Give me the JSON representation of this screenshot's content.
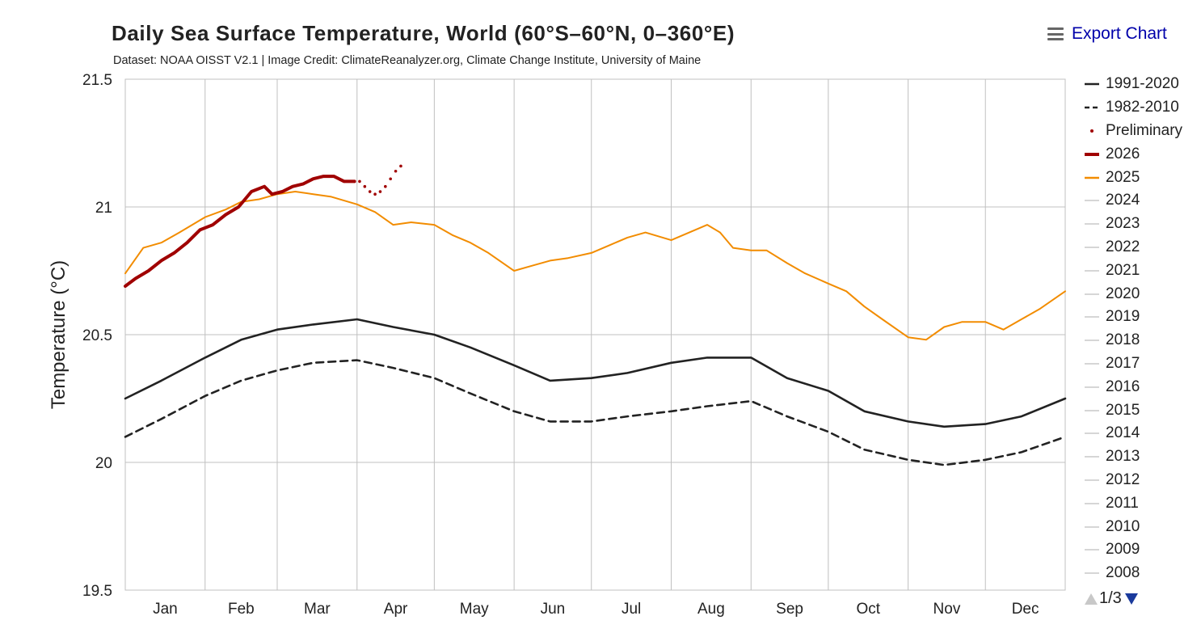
{
  "header": {
    "title": "Daily Sea Surface Temperature, World (60°S–60°N, 0–360°E)",
    "subtitle": "Dataset: NOAA OISST V2.1 | Image Credit: ClimateReanalyzer.org, Climate Change Institute, University of Maine",
    "export_label": "Export Chart",
    "export_icon": "menu-icon"
  },
  "legend": {
    "items": [
      {
        "label": "1991-2020",
        "style": "solid",
        "color": "#222222"
      },
      {
        "label": "1982-2010",
        "style": "dashed",
        "color": "#222222"
      },
      {
        "label": "Preliminary",
        "style": "dot",
        "color": "#a00000"
      },
      {
        "label": "2026",
        "style": "bold",
        "color": "#a00000"
      },
      {
        "label": "2025",
        "style": "solid",
        "color": "#f28c00"
      },
      {
        "label": "2024",
        "style": "thin",
        "color": "#c8c8c8"
      },
      {
        "label": "2023",
        "style": "thin",
        "color": "#c8c8c8"
      },
      {
        "label": "2022",
        "style": "thin",
        "color": "#c8c8c8"
      },
      {
        "label": "2021",
        "style": "thin",
        "color": "#c8c8c8"
      },
      {
        "label": "2020",
        "style": "thin",
        "color": "#c8c8c8"
      },
      {
        "label": "2019",
        "style": "thin",
        "color": "#c8c8c8"
      },
      {
        "label": "2018",
        "style": "thin",
        "color": "#c8c8c8"
      },
      {
        "label": "2017",
        "style": "thin",
        "color": "#c8c8c8"
      },
      {
        "label": "2016",
        "style": "thin",
        "color": "#c8c8c8"
      },
      {
        "label": "2015",
        "style": "thin",
        "color": "#c8c8c8"
      },
      {
        "label": "2014",
        "style": "thin",
        "color": "#c8c8c8"
      },
      {
        "label": "2013",
        "style": "thin",
        "color": "#c8c8c8"
      },
      {
        "label": "2012",
        "style": "thin",
        "color": "#c8c8c8"
      },
      {
        "label": "2011",
        "style": "thin",
        "color": "#c8c8c8"
      },
      {
        "label": "2010",
        "style": "thin",
        "color": "#c8c8c8"
      },
      {
        "label": "2009",
        "style": "thin",
        "color": "#c8c8c8"
      },
      {
        "label": "2008",
        "style": "thin",
        "color": "#c8c8c8"
      }
    ],
    "page_label": "1/3"
  },
  "chart_data": {
    "type": "line",
    "title": "Daily Sea Surface Temperature, World (60°S–60°N, 0–360°E)",
    "ylabel": "Temperature (°C)",
    "xlabel": "",
    "ylim": [
      19.5,
      21.5
    ],
    "yticks": [
      19.5,
      20,
      20.5,
      21,
      21.5
    ],
    "ytick_labels": [
      "19.5",
      "20",
      "20.5",
      "21",
      "21.5"
    ],
    "xlim": [
      1,
      366
    ],
    "month_starts": [
      1,
      32,
      60,
      91,
      121,
      152,
      182,
      213,
      244,
      274,
      305,
      335
    ],
    "month_labels": [
      "Jan",
      "Feb",
      "Mar",
      "Apr",
      "May",
      "Jun",
      "Jul",
      "Aug",
      "Sep",
      "Oct",
      "Nov",
      "Dec"
    ],
    "grid": true,
    "legend_position": "right",
    "series": [
      {
        "name": "1991-2020",
        "color": "#222222",
        "style": "solid",
        "x": [
          1,
          15,
          32,
          46,
          60,
          74,
          91,
          105,
          121,
          135,
          152,
          166,
          182,
          196,
          213,
          227,
          244,
          258,
          274,
          288,
          305,
          319,
          335,
          349,
          366
        ],
        "y": [
          20.25,
          20.32,
          20.41,
          20.48,
          20.52,
          20.54,
          20.56,
          20.53,
          20.5,
          20.45,
          20.38,
          20.32,
          20.33,
          20.35,
          20.39,
          20.41,
          20.41,
          20.33,
          20.28,
          20.2,
          20.16,
          20.14,
          20.15,
          20.18,
          20.25
        ]
      },
      {
        "name": "1982-2010",
        "color": "#222222",
        "style": "dashed",
        "x": [
          1,
          15,
          32,
          46,
          60,
          74,
          91,
          105,
          121,
          135,
          152,
          166,
          182,
          196,
          213,
          227,
          244,
          258,
          274,
          288,
          305,
          319,
          335,
          349,
          366
        ],
        "y": [
          20.1,
          20.17,
          20.26,
          20.32,
          20.36,
          20.39,
          20.4,
          20.37,
          20.33,
          20.27,
          20.2,
          20.16,
          20.16,
          20.18,
          20.2,
          20.22,
          20.24,
          20.18,
          20.12,
          20.05,
          20.01,
          19.99,
          20.01,
          20.04,
          20.1
        ]
      },
      {
        "name": "2025",
        "color": "#f28c00",
        "style": "solid",
        "x": [
          1,
          8,
          15,
          22,
          32,
          40,
          46,
          53,
          60,
          67,
          74,
          81,
          91,
          98,
          105,
          112,
          121,
          128,
          135,
          142,
          152,
          159,
          166,
          173,
          182,
          189,
          196,
          203,
          213,
          220,
          227,
          232,
          237,
          244,
          250,
          258,
          265,
          274,
          281,
          288,
          295,
          305,
          312,
          319,
          326,
          335,
          342,
          349,
          356,
          366
        ],
        "y": [
          20.74,
          20.84,
          20.86,
          20.9,
          20.96,
          20.99,
          21.02,
          21.03,
          21.05,
          21.06,
          21.05,
          21.04,
          21.01,
          20.98,
          20.93,
          20.94,
          20.93,
          20.89,
          20.86,
          20.82,
          20.75,
          20.77,
          20.79,
          20.8,
          20.82,
          20.85,
          20.88,
          20.9,
          20.87,
          20.9,
          20.93,
          20.9,
          20.84,
          20.83,
          20.83,
          20.78,
          20.74,
          20.7,
          20.67,
          20.61,
          20.56,
          20.49,
          20.48,
          20.53,
          20.55,
          20.55,
          20.52,
          20.56,
          20.6,
          20.67
        ]
      },
      {
        "name": "2026",
        "color": "#a00000",
        "style": "bold",
        "x": [
          1,
          5,
          10,
          15,
          20,
          25,
          30,
          35,
          40,
          45,
          50,
          55,
          58,
          62,
          66,
          70,
          74,
          78,
          82,
          86,
          90
        ],
        "y": [
          20.69,
          20.72,
          20.75,
          20.79,
          20.82,
          20.86,
          20.91,
          20.93,
          20.97,
          21.0,
          21.06,
          21.08,
          21.05,
          21.06,
          21.08,
          21.09,
          21.11,
          21.12,
          21.12,
          21.1,
          21.1
        ]
      },
      {
        "name": "Preliminary",
        "color": "#a00000",
        "style": "dot",
        "x": [
          90,
          92,
          94,
          96,
          98,
          100,
          102,
          104,
          106,
          108
        ],
        "y": [
          21.1,
          21.1,
          21.08,
          21.06,
          21.05,
          21.06,
          21.08,
          21.11,
          21.14,
          21.16
        ]
      }
    ]
  }
}
